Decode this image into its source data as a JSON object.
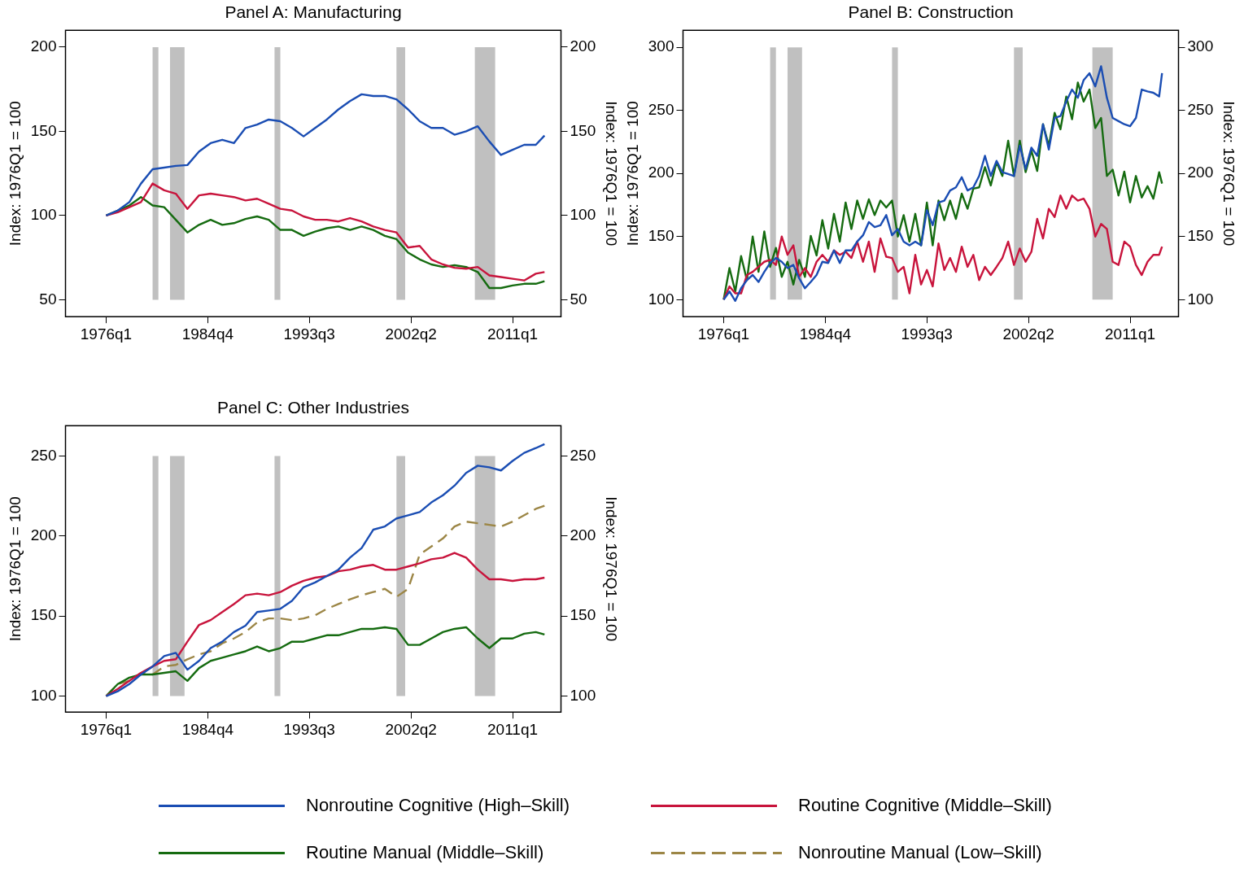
{
  "chart_data": [
    {
      "type": "line",
      "title": "Panel A: Manufacturing",
      "ylabel": "Index: 1976Q1 = 100",
      "y2label": "Index: 1976Q1 = 100",
      "xlim": [
        "1972-07",
        "2015-03"
      ],
      "xticks": [
        {
          "value": "1976-01",
          "label": "1976q1"
        },
        {
          "value": "1984-10",
          "label": "1984q4"
        },
        {
          "value": "1993-07",
          "label": "1993q3"
        },
        {
          "value": "2002-04",
          "label": "2002q2"
        },
        {
          "value": "2011-01",
          "label": "2011q1"
        }
      ],
      "ylim": [
        40,
        210
      ],
      "yticks": [
        50,
        100,
        150,
        200
      ],
      "y2lim": [
        40,
        210
      ],
      "y2ticks": [
        50,
        100,
        150,
        200
      ],
      "grid": false,
      "legend": false,
      "marker": "none",
      "bands": [
        {
          "axis": "x",
          "from": "1980-01",
          "to": "1980-07",
          "color": "#c0c0c0"
        },
        {
          "axis": "x",
          "from": "1981-07",
          "to": "1982-10",
          "color": "#c0c0c0"
        },
        {
          "axis": "x",
          "from": "1990-07",
          "to": "1991-01",
          "color": "#c0c0c0"
        },
        {
          "axis": "x",
          "from": "2001-01",
          "to": "2001-10",
          "color": "#c0c0c0"
        },
        {
          "axis": "x",
          "from": "2007-10",
          "to": "2009-07",
          "color": "#c0c0c0"
        }
      ],
      "x": [
        "1976-01",
        "1977-01",
        "1978-01",
        "1979-01",
        "1980-01",
        "1981-01",
        "1982-01",
        "1983-01",
        "1984-01",
        "1985-01",
        "1986-01",
        "1987-01",
        "1988-01",
        "1989-01",
        "1990-01",
        "1991-01",
        "1992-01",
        "1993-01",
        "1994-01",
        "1995-01",
        "1996-01",
        "1997-01",
        "1998-01",
        "1999-01",
        "2000-01",
        "2001-01",
        "2002-01",
        "2003-01",
        "2004-01",
        "2005-01",
        "2006-01",
        "2007-01",
        "2008-01",
        "2009-01",
        "2010-01",
        "2011-01",
        "2012-01",
        "2013-01",
        "2013-10"
      ],
      "series": [
        {
          "color": "#1a4db3",
          "values": [
            100,
            103,
            108,
            119,
            127.5,
            128.5,
            129.5,
            130,
            138,
            143,
            145,
            143,
            152,
            154,
            157,
            156,
            152,
            147,
            152,
            157,
            163,
            168,
            172,
            171,
            171,
            169,
            163,
            156,
            152,
            152,
            148,
            150,
            153,
            144,
            136,
            139,
            142,
            142,
            147.5
          ]
        },
        {
          "color": "#c8143c",
          "values": [
            100,
            102,
            105,
            108,
            119,
            115,
            113,
            104,
            112,
            113,
            112,
            111,
            109,
            110,
            107,
            104,
            103,
            99.5,
            97.5,
            97.5,
            96.5,
            98.5,
            96.5,
            93.5,
            91.5,
            90,
            81,
            82,
            74,
            71,
            69,
            68.5,
            69.5,
            64.5,
            63.5,
            62.5,
            61.5,
            65.5,
            66.5
          ]
        },
        {
          "color": "#156b10",
          "values": [
            100,
            103,
            106,
            111,
            106,
            105,
            97.5,
            90,
            94.5,
            97.5,
            94.5,
            95.5,
            98,
            99.5,
            97.5,
            91.5,
            91.5,
            88,
            90.5,
            92.5,
            93.5,
            91.5,
            93.5,
            91.5,
            88,
            86,
            78,
            74,
            71,
            69.5,
            70.5,
            69.5,
            66.5,
            57,
            57,
            58.5,
            59.5,
            59.5,
            61
          ]
        }
      ]
    },
    {
      "type": "line",
      "title": "Panel B: Construction",
      "ylabel": "Index: 1976Q1 = 100",
      "y2label": "Index: 1976Q1 = 100",
      "xlim": [
        "1972-07",
        "2015-03"
      ],
      "xticks": [
        {
          "value": "1976-01",
          "label": "1976q1"
        },
        {
          "value": "1984-10",
          "label": "1984q4"
        },
        {
          "value": "1993-07",
          "label": "1993q3"
        },
        {
          "value": "2002-04",
          "label": "2002q2"
        },
        {
          "value": "2011-01",
          "label": "2011q1"
        }
      ],
      "ylim": [
        86.5,
        313.5
      ],
      "yticks": [
        100,
        150,
        200,
        250,
        300
      ],
      "y2lim": [
        86.5,
        313.5
      ],
      "y2ticks": [
        100,
        150,
        200,
        250,
        300
      ],
      "grid": false,
      "legend": false,
      "marker": "none",
      "bands": [
        {
          "axis": "x",
          "from": "1980-01",
          "to": "1980-07",
          "color": "#c0c0c0"
        },
        {
          "axis": "x",
          "from": "1981-07",
          "to": "1982-10",
          "color": "#c0c0c0"
        },
        {
          "axis": "x",
          "from": "1990-07",
          "to": "1991-01",
          "color": "#c0c0c0"
        },
        {
          "axis": "x",
          "from": "2001-01",
          "to": "2001-10",
          "color": "#c0c0c0"
        },
        {
          "axis": "x",
          "from": "2007-10",
          "to": "2009-07",
          "color": "#c0c0c0"
        }
      ],
      "x": [
        "1976-01",
        "1976-07",
        "1977-01",
        "1977-07",
        "1978-01",
        "1978-07",
        "1979-01",
        "1979-07",
        "1980-01",
        "1980-07",
        "1981-01",
        "1981-07",
        "1982-01",
        "1982-07",
        "1983-01",
        "1983-07",
        "1984-01",
        "1984-07",
        "1985-01",
        "1985-07",
        "1986-01",
        "1986-07",
        "1987-01",
        "1987-07",
        "1988-01",
        "1988-07",
        "1989-01",
        "1989-07",
        "1990-01",
        "1990-07",
        "1991-01",
        "1991-07",
        "1992-01",
        "1992-07",
        "1993-01",
        "1993-07",
        "1994-01",
        "1994-07",
        "1995-01",
        "1995-07",
        "1996-01",
        "1996-07",
        "1997-01",
        "1997-07",
        "1998-01",
        "1998-07",
        "1999-01",
        "1999-07",
        "2000-01",
        "2000-07",
        "2001-01",
        "2001-07",
        "2002-01",
        "2002-07",
        "2003-01",
        "2003-07",
        "2004-01",
        "2004-07",
        "2005-01",
        "2005-07",
        "2006-01",
        "2006-07",
        "2007-01",
        "2007-07",
        "2008-01",
        "2008-07",
        "2009-01",
        "2009-07",
        "2010-01",
        "2010-07",
        "2011-01",
        "2011-07",
        "2012-01",
        "2012-07",
        "2013-01",
        "2013-07",
        "2013-10"
      ],
      "series": [
        {
          "color": "#1a4db3",
          "values": [
            100,
            106.5,
            99,
            109,
            115.5,
            119.5,
            114,
            122,
            129,
            133,
            130,
            125,
            127.5,
            117,
            109,
            114,
            119.5,
            130,
            129,
            139,
            129,
            139,
            139,
            146,
            151,
            161.5,
            157.5,
            159,
            167,
            151,
            156,
            146,
            143,
            146,
            143,
            171,
            159,
            177,
            178.5,
            186.5,
            189,
            197,
            186.5,
            189,
            198,
            214,
            198,
            210,
            201,
            199.5,
            198,
            222,
            203.5,
            220.5,
            214,
            239,
            219,
            244,
            245.5,
            257,
            266.5,
            260,
            274,
            279.5,
            269,
            285,
            260,
            244,
            241.5,
            239,
            237.5,
            244,
            266.5,
            265,
            264,
            261,
            279.5
          ]
        },
        {
          "color": "#c8143c",
          "values": [
            100,
            110.5,
            105,
            105,
            119.5,
            122,
            126,
            130,
            131.5,
            127.5,
            150,
            135.5,
            143,
            118,
            125,
            118,
            130,
            135.5,
            130,
            139,
            135.5,
            138,
            133,
            146,
            130,
            146,
            122,
            148.5,
            134,
            133,
            122,
            126,
            105,
            135.5,
            112,
            123.5,
            110.5,
            144.5,
            123.5,
            133,
            122,
            142,
            126,
            135.5,
            115.5,
            126,
            119.5,
            126,
            133,
            146,
            127.5,
            140.5,
            130,
            138,
            164,
            148.5,
            172,
            165.5,
            182.5,
            172,
            182.5,
            178.5,
            180,
            172,
            150,
            160,
            156,
            130,
            127.5,
            146,
            142,
            127.5,
            119.5,
            130,
            135.5,
            135.5,
            142
          ]
        },
        {
          "color": "#156b10",
          "values": [
            100,
            125,
            106.5,
            134.5,
            115.5,
            150,
            122,
            154,
            126,
            141,
            118,
            130,
            112,
            131.5,
            118,
            150.5,
            135,
            163,
            140.5,
            168,
            146,
            177,
            156,
            178.5,
            164,
            179.5,
            167,
            178.5,
            173,
            178.5,
            150,
            167,
            146,
            168,
            143,
            177,
            143,
            178.5,
            163,
            178.5,
            164,
            184,
            172,
            188,
            189,
            205,
            190.5,
            209,
            198,
            226,
            198,
            226,
            201,
            218,
            202,
            239,
            222,
            248,
            235,
            261,
            243,
            272,
            257,
            266.5,
            236,
            244,
            198,
            203,
            182.5,
            201.5,
            177,
            198,
            181,
            190,
            180,
            201,
            192
          ]
        }
      ]
    },
    {
      "type": "line",
      "title": "Panel C: Other Industries",
      "ylabel": "Index: 1976Q1 = 100",
      "y2label": "Index: 1976Q1 = 100",
      "xlim": [
        "1972-07",
        "2015-03"
      ],
      "xticks": [
        {
          "value": "1976-01",
          "label": "1976q1"
        },
        {
          "value": "1984-10",
          "label": "1984q4"
        },
        {
          "value": "1993-07",
          "label": "1993q3"
        },
        {
          "value": "2002-04",
          "label": "2002q2"
        },
        {
          "value": "2011-01",
          "label": "2011q1"
        }
      ],
      "ylim": [
        90,
        269
      ],
      "yticks": [
        100,
        150,
        200,
        250
      ],
      "y2lim": [
        90,
        269
      ],
      "y2ticks": [
        100,
        150,
        200,
        250
      ],
      "grid": false,
      "legend": "bottom",
      "marker": "none",
      "bands": [
        {
          "axis": "x",
          "from": "1980-01",
          "to": "1980-07",
          "color": "#c0c0c0"
        },
        {
          "axis": "x",
          "from": "1981-07",
          "to": "1982-10",
          "color": "#c0c0c0"
        },
        {
          "axis": "x",
          "from": "1990-07",
          "to": "1991-01",
          "color": "#c0c0c0"
        },
        {
          "axis": "x",
          "from": "2001-01",
          "to": "2001-10",
          "color": "#c0c0c0"
        },
        {
          "axis": "x",
          "from": "2007-10",
          "to": "2009-07",
          "color": "#c0c0c0"
        }
      ],
      "x": [
        "1976-01",
        "1977-01",
        "1978-01",
        "1979-01",
        "1980-01",
        "1981-01",
        "1982-01",
        "1983-01",
        "1984-01",
        "1985-01",
        "1986-01",
        "1987-01",
        "1988-01",
        "1989-01",
        "1990-01",
        "1991-01",
        "1992-01",
        "1993-01",
        "1994-01",
        "1995-01",
        "1996-01",
        "1997-01",
        "1998-01",
        "1999-01",
        "2000-01",
        "2001-01",
        "2002-01",
        "2003-01",
        "2004-01",
        "2005-01",
        "2006-01",
        "2007-01",
        "2008-01",
        "2009-01",
        "2010-01",
        "2011-01",
        "2012-01",
        "2013-01",
        "2013-10"
      ],
      "series": [
        {
          "name": "Nonroutine Cognitive (High–Skill)",
          "color": "#1a4db3",
          "values": [
            100,
            103,
            107.5,
            113.5,
            118.5,
            125,
            127,
            116.5,
            122,
            130,
            134,
            140,
            144,
            152.5,
            153.5,
            154.5,
            159.5,
            168,
            171,
            175,
            179,
            186.5,
            192.5,
            204,
            206,
            211,
            213,
            215,
            221,
            225.5,
            231.5,
            239.5,
            244,
            243,
            241,
            247,
            252,
            255,
            257.5
          ]
        },
        {
          "name": "Routine Cognitive (Middle–Skill)",
          "color": "#c8143c",
          "values": [
            100,
            104.5,
            109.5,
            114.5,
            118.5,
            122,
            123,
            134,
            144.5,
            147.5,
            152.5,
            157.5,
            163,
            164,
            163,
            165,
            169,
            172,
            174,
            175,
            178,
            179,
            181,
            182,
            179,
            179,
            181,
            183,
            185.5,
            186.5,
            189.5,
            186.5,
            179,
            173,
            173,
            172,
            173,
            173,
            174
          ]
        },
        {
          "name": "Routine Manual (Middle–Skill)",
          "color": "#156b10",
          "values": [
            100,
            107.5,
            111.5,
            113.5,
            113.5,
            114.5,
            115.5,
            109.5,
            117.5,
            122,
            124,
            126,
            128,
            131,
            128,
            130,
            134,
            134,
            136,
            138,
            138,
            140,
            142,
            142,
            143,
            142,
            132,
            132,
            136,
            140,
            142,
            143,
            136,
            130,
            136,
            136,
            139,
            140,
            138.5
          ]
        },
        {
          "name": "Nonroutine Manual (Low–Skill)",
          "color": "#9c8646",
          "line_style": "dashed",
          "values": [
            100,
            107.5,
            109.5,
            114.5,
            113.5,
            118.5,
            119.5,
            123,
            126,
            128,
            133,
            136,
            140,
            146,
            148.5,
            148.5,
            147.5,
            148.5,
            150.5,
            154.5,
            157.5,
            160.5,
            163,
            165,
            167,
            162,
            167,
            188.5,
            193.5,
            198.5,
            206,
            209,
            208,
            207,
            206,
            209,
            213,
            217,
            219
          ]
        }
      ]
    }
  ]
}
